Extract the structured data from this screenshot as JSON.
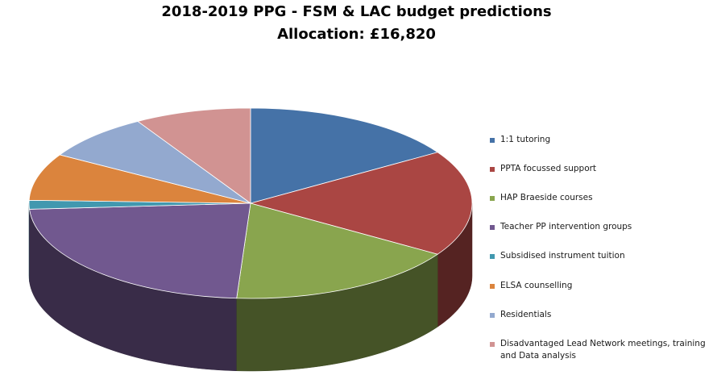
{
  "chart_data": {
    "type": "pie",
    "title": "2018-2019  PPG - FSM & LAC budget predictions",
    "subtitle": "Allocation:  £16,820",
    "legend_position": "right",
    "categories": [
      "1:1 tutoring",
      "PPTA focussed support",
      "HAP Braeside courses",
      "Teacher PP intervention groups",
      "Subsidised instrument tuition",
      "ELSA counselling",
      "Residentials",
      "Disadvantaged Lead Network meetings, training and Data analysis"
    ],
    "values": [
      16,
      18,
      17,
      23,
      1.5,
      8,
      8,
      8.5
    ],
    "colors": [
      "#4572a7",
      "#aa4643",
      "#89a54e",
      "#71588f",
      "#4198af",
      "#db843d",
      "#93a9cf",
      "#d19392"
    ]
  }
}
